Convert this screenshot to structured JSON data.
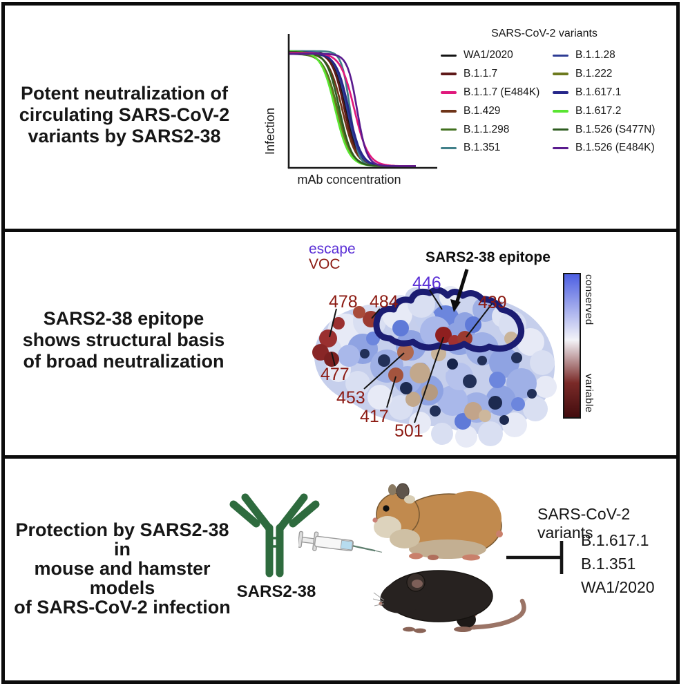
{
  "panel1": {
    "title_lines": [
      "Potent neutralization of",
      "circulating SARS-CoV-2",
      "variants by SARS2-38"
    ]
  },
  "chart_data": {
    "type": "line",
    "title": "",
    "legend_title": "SARS-CoV-2 variants",
    "xlabel": "mAb concentration",
    "ylabel": "Infection",
    "note": "schematic sigmoidal neutralization curves; infection decreases with increasing mAb concentration; no numeric ticks shown",
    "legend_position": "right",
    "series": [
      {
        "name": "WA1/2020",
        "color": "#141414",
        "relative_ic50": 0.45,
        "steep": 9
      },
      {
        "name": "B.1.1.7",
        "color": "#5e1818",
        "relative_ic50": 0.42,
        "steep": 9
      },
      {
        "name": "B.1.1.7 (E484K)",
        "color": "#e0187c",
        "relative_ic50": 0.6,
        "steep": 10
      },
      {
        "name": "B.1.429",
        "color": "#6e3418",
        "relative_ic50": 0.38,
        "steep": 10
      },
      {
        "name": "B.1.1.298",
        "color": "#41701f",
        "relative_ic50": 0.3,
        "steep": 10
      },
      {
        "name": "B.1.351",
        "color": "#41808a",
        "relative_ic50": 0.52,
        "steep": 6
      },
      {
        "name": "B.1.1.28",
        "color": "#2d3c94",
        "relative_ic50": 0.47,
        "steep": 9
      },
      {
        "name": "B.1.222",
        "color": "#6d7a1e",
        "relative_ic50": 0.28,
        "steep": 10
      },
      {
        "name": "B.1.617.1",
        "color": "#26278a",
        "relative_ic50": 0.5,
        "steep": 9
      },
      {
        "name": "B.1.617.2",
        "color": "#59e532",
        "relative_ic50": 0.25,
        "steep": 10
      },
      {
        "name": "B.1.526 (S477N)",
        "color": "#2e5c20",
        "relative_ic50": 0.33,
        "steep": 9
      },
      {
        "name": "B.1.526 (E484K)",
        "color": "#5a1b8e",
        "relative_ic50": 0.65,
        "steep": 7
      }
    ]
  },
  "panel2": {
    "title_lines": [
      "SARS2-38 epitope",
      "shows structural basis",
      "of broad neutralization"
    ],
    "escape_label": "escape",
    "voc_label": "VOC",
    "epitope_label": "SARS2-38 epitope",
    "escape_color": "#5a2fd6",
    "voc_color": "#8c1a12",
    "labels": {
      "r446": "446",
      "r478": "478",
      "r484": "484",
      "r439": "439",
      "r477": "477",
      "r453": "453",
      "r417": "417",
      "r501": "501"
    },
    "colorbar": {
      "top_label": "conserved",
      "bottom_label": "variable",
      "top_color": "#4d5fe2",
      "mid_color": "#f3f3f8",
      "lower_mid_color": "#7a2a28",
      "bottom_color": "#420c0e"
    }
  },
  "panel3": {
    "title_lines": [
      "Protection by SARS2-38 in",
      "mouse and hamster models",
      "of SARS-CoV-2 infection"
    ],
    "antibody_label": "SARS2-38",
    "antibody_color": "#2e6b3e",
    "variants_title": "SARS-CoV-2 variants",
    "variants": [
      "B.1.617.1",
      "B.1.351",
      "WA1/2020"
    ]
  }
}
